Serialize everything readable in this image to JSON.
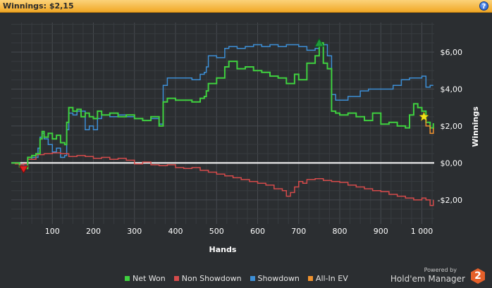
{
  "header": {
    "title": "Winnings: $2,15",
    "help_glyph": "?"
  },
  "chart_data": {
    "type": "line",
    "xlabel": "Hands",
    "ylabel": "Winnings",
    "xlim": [
      0,
      1030
    ],
    "ylim": [
      -3.3,
      7.6
    ],
    "x_ticks": [
      100,
      200,
      300,
      400,
      500,
      600,
      700,
      800,
      900,
      1000
    ],
    "x_tick_labels": [
      "100",
      "200",
      "300",
      "400",
      "500",
      "600",
      "700",
      "800",
      "900",
      "1 000"
    ],
    "y_ticks": [
      -2,
      0,
      2,
      4,
      6
    ],
    "y_tick_labels": [
      "-$2,00",
      "$0,00",
      "$2,00",
      "$4,00",
      "$6,00"
    ],
    "grid": true,
    "legend_position": "bottom",
    "series": [
      {
        "name": "Showdown",
        "color": "#3d8fd6",
        "x": [
          0,
          20,
          30,
          40,
          50,
          60,
          65,
          70,
          75,
          80,
          90,
          100,
          110,
          120,
          130,
          135,
          140,
          150,
          160,
          180,
          190,
          200,
          210,
          220,
          240,
          260,
          280,
          300,
          320,
          340,
          360,
          370,
          380,
          400,
          420,
          440,
          460,
          470,
          475,
          480,
          500,
          520,
          530,
          550,
          570,
          590,
          610,
          630,
          650,
          670,
          690,
          700,
          720,
          740,
          750,
          760,
          770,
          780,
          790,
          800,
          820,
          850,
          870,
          900,
          930,
          950,
          970,
          990,
          1000,
          1010,
          1020,
          1028
        ],
        "y": [
          0,
          -0.1,
          -0.15,
          0.2,
          0.3,
          0.3,
          0.8,
          1.4,
          1.6,
          1.3,
          1.0,
          0.6,
          0.8,
          0.3,
          0.4,
          1.8,
          2.7,
          2.6,
          2.8,
          1.8,
          2.0,
          1.8,
          2.4,
          2.6,
          2.5,
          2.6,
          2.5,
          2.4,
          2.3,
          2.4,
          2.1,
          4.2,
          4.6,
          4.6,
          4.6,
          4.5,
          4.8,
          4.9,
          5.2,
          5.8,
          5.7,
          6.2,
          6.3,
          6.2,
          6.3,
          6.4,
          6.3,
          6.4,
          6.3,
          6.4,
          6.4,
          6.3,
          6.1,
          6.2,
          6.5,
          6.4,
          5.8,
          3.7,
          3.4,
          3.4,
          3.6,
          3.9,
          4.0,
          4.0,
          4.2,
          4.5,
          4.6,
          4.6,
          4.7,
          4.1,
          4.2,
          4.2
        ]
      },
      {
        "name": "Non Showdown",
        "color": "#d54b4b",
        "x": [
          0,
          10,
          20,
          30,
          40,
          60,
          80,
          100,
          120,
          140,
          160,
          180,
          200,
          220,
          240,
          260,
          280,
          300,
          320,
          340,
          360,
          380,
          400,
          420,
          440,
          460,
          480,
          500,
          520,
          540,
          560,
          580,
          600,
          620,
          640,
          660,
          670,
          680,
          690,
          700,
          710,
          720,
          740,
          760,
          780,
          800,
          820,
          840,
          860,
          880,
          900,
          920,
          940,
          960,
          980,
          1000,
          1010,
          1020,
          1028
        ],
        "y": [
          0,
          -0.05,
          -0.1,
          -0.05,
          0.2,
          0.45,
          0.5,
          0.55,
          0.5,
          0.35,
          0.4,
          0.35,
          0.25,
          0.3,
          0.2,
          0.25,
          0.15,
          -0.05,
          0.05,
          -0.1,
          -0.15,
          -0.1,
          -0.25,
          -0.3,
          -0.25,
          -0.4,
          -0.5,
          -0.6,
          -0.7,
          -0.8,
          -0.9,
          -1.0,
          -1.1,
          -1.2,
          -1.4,
          -1.5,
          -1.8,
          -1.6,
          -1.3,
          -1.0,
          -1.1,
          -0.9,
          -0.85,
          -0.95,
          -1.0,
          -1.05,
          -1.2,
          -1.3,
          -1.4,
          -1.5,
          -1.55,
          -1.7,
          -1.8,
          -1.9,
          -2.0,
          -1.9,
          -2.0,
          -2.3,
          -2.0
        ]
      },
      {
        "name": "Net Won",
        "color": "#3fd13f",
        "x": [
          0,
          20,
          30,
          40,
          50,
          60,
          70,
          75,
          80,
          90,
          100,
          110,
          120,
          130,
          135,
          140,
          150,
          160,
          170,
          180,
          190,
          200,
          210,
          220,
          240,
          260,
          280,
          300,
          320,
          340,
          360,
          370,
          380,
          400,
          420,
          440,
          460,
          470,
          475,
          480,
          500,
          520,
          530,
          550,
          570,
          590,
          610,
          630,
          650,
          670,
          690,
          700,
          720,
          740,
          750,
          760,
          770,
          780,
          790,
          800,
          820,
          840,
          860,
          880,
          900,
          920,
          940,
          950,
          960,
          970,
          980,
          990,
          1000,
          1010,
          1020,
          1028
        ],
        "y": [
          0,
          -0.2,
          -0.3,
          0.3,
          0.4,
          0.5,
          1.3,
          1.7,
          1.4,
          1.6,
          1.3,
          1.5,
          1.1,
          1.0,
          2.2,
          3.0,
          2.8,
          2.9,
          2.5,
          2.7,
          2.5,
          2.4,
          2.8,
          2.6,
          2.7,
          2.5,
          2.6,
          2.4,
          2.3,
          2.5,
          2.0,
          3.3,
          3.5,
          3.4,
          3.4,
          3.3,
          3.5,
          3.6,
          3.9,
          4.3,
          4.6,
          5.2,
          5.5,
          5.1,
          5.2,
          5.0,
          4.9,
          4.7,
          4.6,
          4.3,
          4.8,
          4.5,
          5.4,
          5.8,
          6.5,
          5.4,
          5.1,
          2.8,
          2.7,
          2.6,
          2.7,
          2.5,
          2.3,
          2.7,
          2.1,
          2.2,
          2.0,
          2.0,
          1.9,
          2.6,
          3.2,
          3.0,
          2.8,
          2.2,
          1.9,
          2.15
        ]
      },
      {
        "name": "All-In EV",
        "color": "#f0922e",
        "x": [
          1000,
          1010,
          1020,
          1028
        ],
        "y": [
          2.4,
          2.0,
          1.6,
          1.9
        ]
      }
    ],
    "annotations": [
      {
        "type": "min-marker",
        "x": 30,
        "y": -0.35,
        "color": "#e02020"
      },
      {
        "type": "max-marker",
        "x": 750,
        "y": 6.5,
        "color": "#1f9a3a"
      },
      {
        "type": "star-marker",
        "x": 1005,
        "y": 2.5,
        "color": "#f4e21a"
      }
    ]
  },
  "legend": [
    {
      "label": "Net Won",
      "color": "#3fd13f"
    },
    {
      "label": "Non Showdown",
      "color": "#d54b4b"
    },
    {
      "label": "Showdown",
      "color": "#3d8fd6"
    },
    {
      "label": "All-In EV",
      "color": "#f0922e"
    }
  ],
  "branding": {
    "powered": "Powered by",
    "name": "Hold'em Manager",
    "logo_text": "2"
  }
}
